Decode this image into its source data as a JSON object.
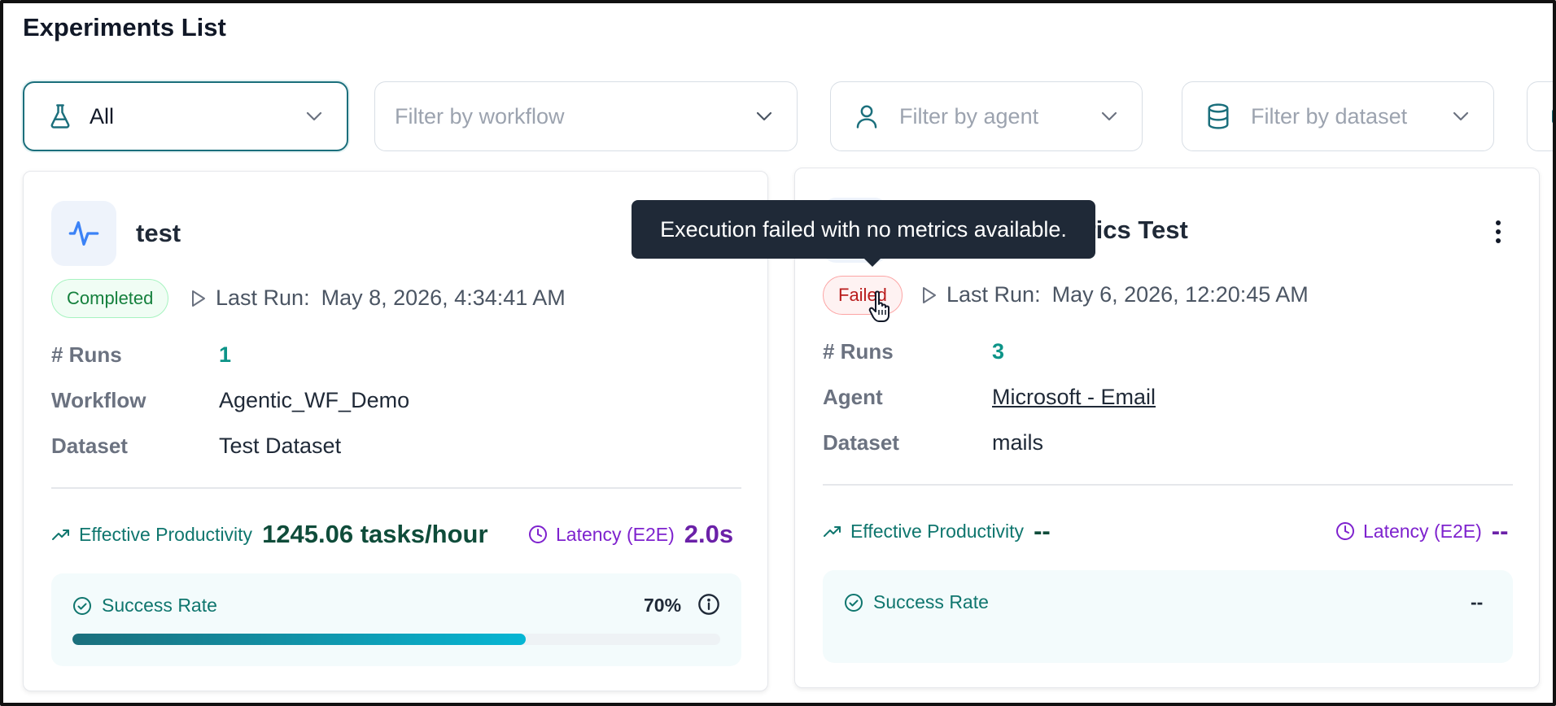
{
  "page": {
    "title": "Experiments List"
  },
  "filters": {
    "status": {
      "value": "All",
      "icon": "flask-icon"
    },
    "workflow": {
      "placeholder": "Filter by workflow"
    },
    "agent": {
      "placeholder": "Filter by agent",
      "icon": "user-icon"
    },
    "dataset": {
      "placeholder": "Filter by dataset",
      "icon": "database-icon"
    }
  },
  "experiments": [
    {
      "name": "test",
      "icon": "activity-icon",
      "status": "Completed",
      "last_run_label": "Last Run:",
      "last_run": "May 8, 2026, 4:34:41 AM",
      "runs_label": "# Runs",
      "runs": "1",
      "source_label": "Workflow",
      "source_value": "Agentic_WF_Demo",
      "dataset_label": "Dataset",
      "dataset_value": "Test Dataset",
      "productivity_label": "Effective Productivity",
      "productivity_value": "1245.06 tasks/hour",
      "latency_label": "Latency (E2E)",
      "latency_value": "2.0s",
      "success_label": "Success Rate",
      "success_value": "70%",
      "success_fraction": 0.7
    },
    {
      "name": "etrics Test",
      "status": "Failed",
      "last_run_label": "Last Run:",
      "last_run": "May 6, 2026, 12:20:45 AM",
      "runs_label": "# Runs",
      "runs": "3",
      "source_label": "Agent",
      "source_value": "Microsoft - Email",
      "dataset_label": "Dataset",
      "dataset_value": "mails",
      "productivity_label": "Effective Productivity",
      "productivity_value": "--",
      "latency_label": "Latency (E2E)",
      "latency_value": "--",
      "success_label": "Success Rate",
      "success_value": "--"
    }
  ],
  "tooltip": {
    "text": "Execution failed with no metrics available."
  },
  "colors": {
    "accent": "#1b6f7c",
    "success": "#0f766e",
    "latency": "#7e22ce",
    "failed": "#b91c1c"
  }
}
